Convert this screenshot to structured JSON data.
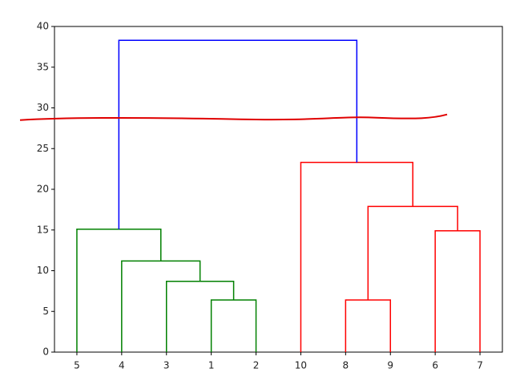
{
  "chart_data": {
    "type": "dendrogram",
    "categories": [
      "5",
      "4",
      "3",
      "1",
      "2",
      "10",
      "8",
      "9",
      "6",
      "7"
    ],
    "merges": [
      {
        "children": [
          3,
          4
        ],
        "height": 6.4,
        "color": "#008000"
      },
      {
        "children": [
          2,
          10
        ],
        "height": 8.7,
        "color": "#008000"
      },
      {
        "children": [
          1,
          11
        ],
        "height": 11.2,
        "color": "#008000"
      },
      {
        "children": [
          0,
          12
        ],
        "height": 15.1,
        "color": "#008000"
      },
      {
        "children": [
          6,
          7
        ],
        "height": 6.4,
        "color": "#ff0000"
      },
      {
        "children": [
          8,
          9
        ],
        "height": 14.9,
        "color": "#ff0000"
      },
      {
        "children": [
          14,
          15
        ],
        "height": 17.9,
        "color": "#ff0000"
      },
      {
        "children": [
          5,
          16
        ],
        "height": 23.3,
        "color": "#ff0000"
      },
      {
        "children": [
          13,
          17
        ],
        "height": 38.3,
        "color": "#0000ff"
      }
    ],
    "threshold": {
      "value": 28.7,
      "color": "#e00000"
    },
    "ylim": [
      0,
      40
    ],
    "yticks": [
      0,
      5,
      10,
      15,
      20,
      25,
      30,
      35,
      40
    ]
  }
}
